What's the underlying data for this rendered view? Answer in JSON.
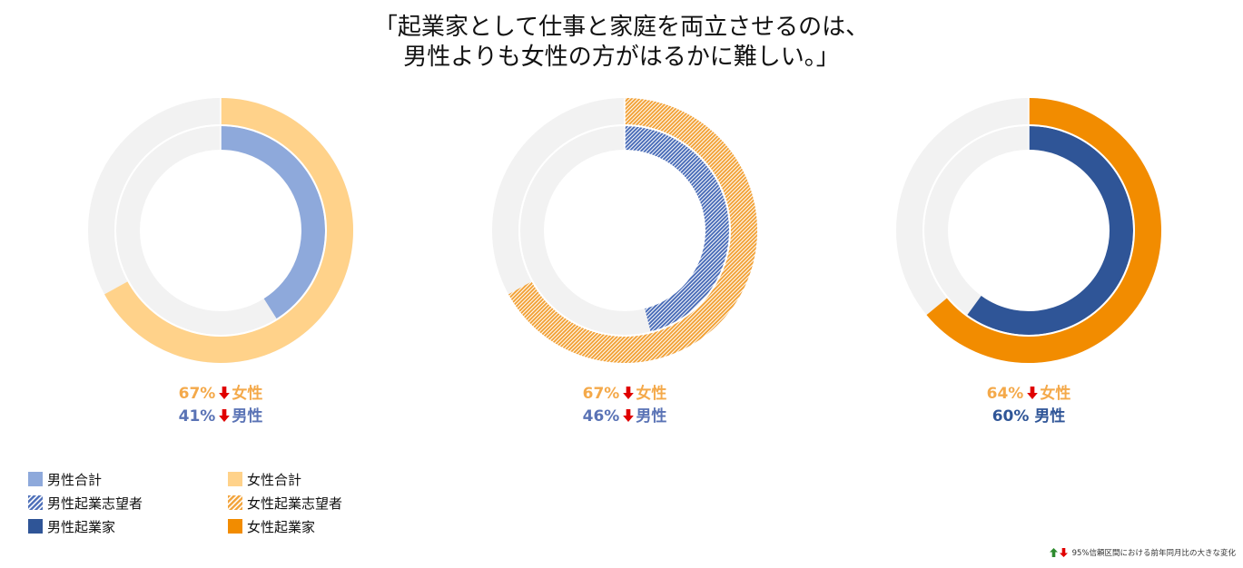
{
  "title_lines": [
    "「起業家として仕事と家庭を両立させるのは、",
    "男性よりも女性の方がはるかに難しい。」"
  ],
  "colors": {
    "men_total": "#8EA9DB",
    "women_total": "#FFD28A",
    "men_aspiring": "#4C6EB8",
    "women_aspiring": "#F2A33A",
    "men_entrepreneur": "#2F5597",
    "women_entrepreneur": "#F28C00",
    "track": "#F2F2F2",
    "women_text": "#F4A94A",
    "men_text": "#5A73B5",
    "decrease_arrow": "#E00000",
    "increase_arrow": "#2E8B2E"
  },
  "chart_data": [
    {
      "type": "pie",
      "variant": "nested-donut",
      "rings": [
        {
          "ring": "outer",
          "name": "女性合計",
          "value": 67,
          "fill": "women_total",
          "pattern": "solid"
        },
        {
          "ring": "inner",
          "name": "男性合計",
          "value": 41,
          "fill": "men_total",
          "pattern": "solid"
        }
      ],
      "labels": [
        {
          "value_text": "67%",
          "arrow": "down",
          "suffix": "女性",
          "color": "women_text"
        },
        {
          "value_text": "41%",
          "arrow": "down",
          "suffix": "男性",
          "color": "men_text"
        }
      ]
    },
    {
      "type": "pie",
      "variant": "nested-donut",
      "rings": [
        {
          "ring": "outer",
          "name": "女性起業志望者",
          "value": 67,
          "fill": "women_aspiring",
          "pattern": "hatch"
        },
        {
          "ring": "inner",
          "name": "男性起業志望者",
          "value": 46,
          "fill": "men_aspiring",
          "pattern": "hatch"
        }
      ],
      "labels": [
        {
          "value_text": "67%",
          "arrow": "down",
          "suffix": "女性",
          "color": "women_text"
        },
        {
          "value_text": "46%",
          "arrow": "down",
          "suffix": "男性",
          "color": "men_text"
        }
      ]
    },
    {
      "type": "pie",
      "variant": "nested-donut",
      "rings": [
        {
          "ring": "outer",
          "name": "女性起業家",
          "value": 64,
          "fill": "women_entrepreneur",
          "pattern": "solid"
        },
        {
          "ring": "inner",
          "name": "男性起業家",
          "value": 60,
          "fill": "men_entrepreneur",
          "pattern": "solid"
        }
      ],
      "labels": [
        {
          "value_text": "64%",
          "arrow": "down",
          "suffix": "女性",
          "color": "women_text"
        },
        {
          "value_text": "60%",
          "arrow": "none",
          "suffix": "男性",
          "color": "men_entrepreneur"
        }
      ]
    }
  ],
  "legend": [
    {
      "label": "男性合計",
      "fill": "men_total",
      "pattern": "solid"
    },
    {
      "label": "女性合計",
      "fill": "women_total",
      "pattern": "solid"
    },
    {
      "label": "男性起業志望者",
      "fill": "men_aspiring",
      "pattern": "hatch"
    },
    {
      "label": "女性起業志望者",
      "fill": "women_aspiring",
      "pattern": "hatch"
    },
    {
      "label": "男性起業家",
      "fill": "men_entrepreneur",
      "pattern": "solid"
    },
    {
      "label": "女性起業家",
      "fill": "women_entrepreneur",
      "pattern": "solid"
    }
  ],
  "footnote": {
    "icons": [
      "up-arrow-icon",
      "down-arrow-icon"
    ],
    "text": "95%信頼区間における前年同月比の大きな変化"
  }
}
